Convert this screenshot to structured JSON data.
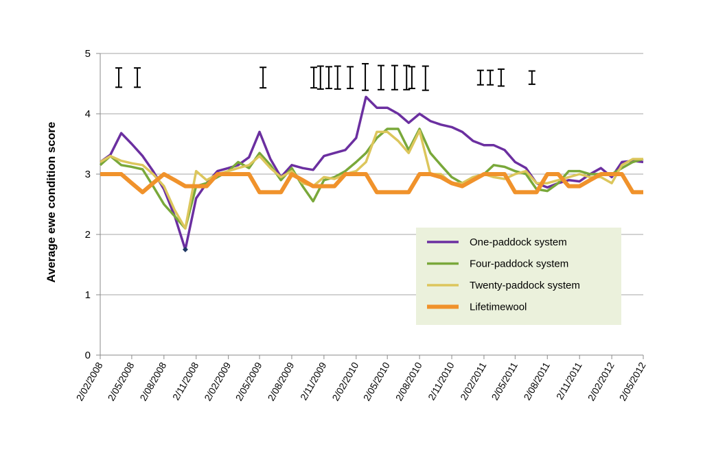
{
  "chart_data": {
    "type": "line",
    "ylabel": "Average ewe condition score",
    "x": [
      "2/02/2008",
      "2/03/2008",
      "2/04/2008",
      "2/05/2008",
      "2/06/2008",
      "2/07/2008",
      "2/08/2008",
      "2/09/2008",
      "2/10/2008",
      "2/11/2008",
      "2/12/2008",
      "2/01/2009",
      "2/02/2009",
      "2/03/2009",
      "2/04/2009",
      "2/05/2009",
      "2/06/2009",
      "2/07/2009",
      "2/08/2009",
      "2/09/2009",
      "2/10/2009",
      "2/11/2009",
      "2/12/2009",
      "2/01/2010",
      "2/02/2010",
      "2/03/2010",
      "2/04/2010",
      "2/05/2010",
      "2/06/2010",
      "2/07/2010",
      "2/08/2010",
      "2/09/2010",
      "2/10/2010",
      "2/11/2010",
      "2/12/2010",
      "2/01/2011",
      "2/02/2011",
      "2/03/2011",
      "2/04/2011",
      "2/05/2011",
      "2/06/2011",
      "2/07/2011",
      "2/08/2011",
      "2/09/2011",
      "2/10/2011",
      "2/11/2011",
      "2/12/2011",
      "2/01/2012",
      "2/02/2012",
      "2/03/2012",
      "2/04/2012",
      "2/05/2012"
    ],
    "xlim": [
      "2/02/2008",
      "2/05/2012"
    ],
    "xticks": [
      "2/02/2008",
      "2/05/2008",
      "2/08/2008",
      "2/11/2008",
      "2/02/2009",
      "2/05/2009",
      "2/08/2009",
      "2/11/2009",
      "2/02/2010",
      "2/05/2010",
      "2/08/2010",
      "2/11/2010",
      "2/02/2011",
      "2/05/2011",
      "2/08/2011",
      "2/11/2011",
      "2/02/2012",
      "2/05/2012"
    ],
    "ylim": [
      0,
      5
    ],
    "yticks": [
      0,
      1,
      2,
      3,
      4,
      5
    ],
    "grid": true,
    "legend": "lower right",
    "series": [
      {
        "name": "One-paddock system",
        "color": "#6b2fa0",
        "width": 3.5,
        "values": [
          3.2,
          3.32,
          3.68,
          3.5,
          3.3,
          3.05,
          2.75,
          2.3,
          1.75,
          2.6,
          2.85,
          3.05,
          3.1,
          3.15,
          3.28,
          3.7,
          3.25,
          2.95,
          3.15,
          3.1,
          3.07,
          3.3,
          3.35,
          3.4,
          3.6,
          4.28,
          4.1,
          4.1,
          4.0,
          3.85,
          4.0,
          3.88,
          3.82,
          3.78,
          3.7,
          3.55,
          3.48,
          3.48,
          3.4,
          3.2,
          3.1,
          2.85,
          2.78,
          2.85,
          2.9,
          2.88,
          3.0,
          3.1,
          2.95,
          3.2,
          3.22,
          3.2
        ]
      },
      {
        "name": "Four-paddock system",
        "color": "#79a83a",
        "width": 3.5,
        "values": [
          3.15,
          3.3,
          3.15,
          3.12,
          3.08,
          2.8,
          2.5,
          2.3,
          2.1,
          2.8,
          2.85,
          2.95,
          3.05,
          3.2,
          3.1,
          3.35,
          3.15,
          2.9,
          3.1,
          2.8,
          2.55,
          2.9,
          2.95,
          3.05,
          3.2,
          3.35,
          3.6,
          3.75,
          3.75,
          3.4,
          3.75,
          3.35,
          3.15,
          2.95,
          2.85,
          2.95,
          3.0,
          3.15,
          3.12,
          3.05,
          3.0,
          2.75,
          2.72,
          2.85,
          3.05,
          3.05,
          3.0,
          3.0,
          3.0,
          3.1,
          3.2,
          3.25
        ]
      },
      {
        "name": "Twenty-paddock system",
        "color": "#dcc65c",
        "width": 3.5,
        "values": [
          3.2,
          3.3,
          3.22,
          3.18,
          3.15,
          3.0,
          2.8,
          2.4,
          2.1,
          3.05,
          2.9,
          3.0,
          3.05,
          3.1,
          3.15,
          3.3,
          3.1,
          2.95,
          3.05,
          2.85,
          2.8,
          2.95,
          2.92,
          3.0,
          3.05,
          3.2,
          3.7,
          3.7,
          3.55,
          3.35,
          3.72,
          3.0,
          3.0,
          2.85,
          2.85,
          2.95,
          3.0,
          2.95,
          2.92,
          3.0,
          3.05,
          2.85,
          2.85,
          2.9,
          2.95,
          3.0,
          2.95,
          2.95,
          2.85,
          3.15,
          3.25,
          3.25
        ]
      },
      {
        "name": "Lifetimewool",
        "color": "#f0922b",
        "width": 6,
        "values": [
          3,
          3,
          3,
          2.85,
          2.7,
          2.85,
          3,
          2.9,
          2.8,
          2.8,
          2.8,
          3,
          3,
          3,
          3,
          2.7,
          2.7,
          2.7,
          3,
          2.9,
          2.8,
          2.8,
          2.8,
          3,
          3,
          3,
          2.7,
          2.7,
          2.7,
          2.7,
          3,
          3,
          2.95,
          2.85,
          2.8,
          2.9,
          3,
          3,
          3,
          2.7,
          2.7,
          2.7,
          3,
          3,
          2.8,
          2.8,
          2.9,
          3,
          3,
          3,
          2.7,
          2.7
        ]
      }
    ],
    "error_bars": {
      "x": [
        "26/03/2008",
        "18/05/2008",
        "12/05/2009",
        "4/10/2009",
        "23/10/2009",
        "16/11/2009",
        "11/12/2009",
        "16/01/2010",
        "28/02/2010",
        "14/04/2010",
        "23/05/2010",
        "26/06/2010",
        "11/07/2010",
        "19/08/2010",
        "23/01/2011",
        "20/02/2011",
        "23/03/2011",
        "19/06/2011"
      ],
      "values": [
        4.6,
        4.6,
        4.6,
        4.6,
        4.6,
        4.6,
        4.6,
        4.6,
        4.61,
        4.6,
        4.6,
        4.6,
        4.6,
        4.59,
        4.6,
        4.6,
        4.6,
        4.6
      ],
      "errors": [
        0.16,
        0.16,
        0.17,
        0.17,
        0.19,
        0.18,
        0.19,
        0.18,
        0.22,
        0.2,
        0.2,
        0.2,
        0.18,
        0.2,
        0.12,
        0.12,
        0.14,
        0.11
      ]
    }
  }
}
